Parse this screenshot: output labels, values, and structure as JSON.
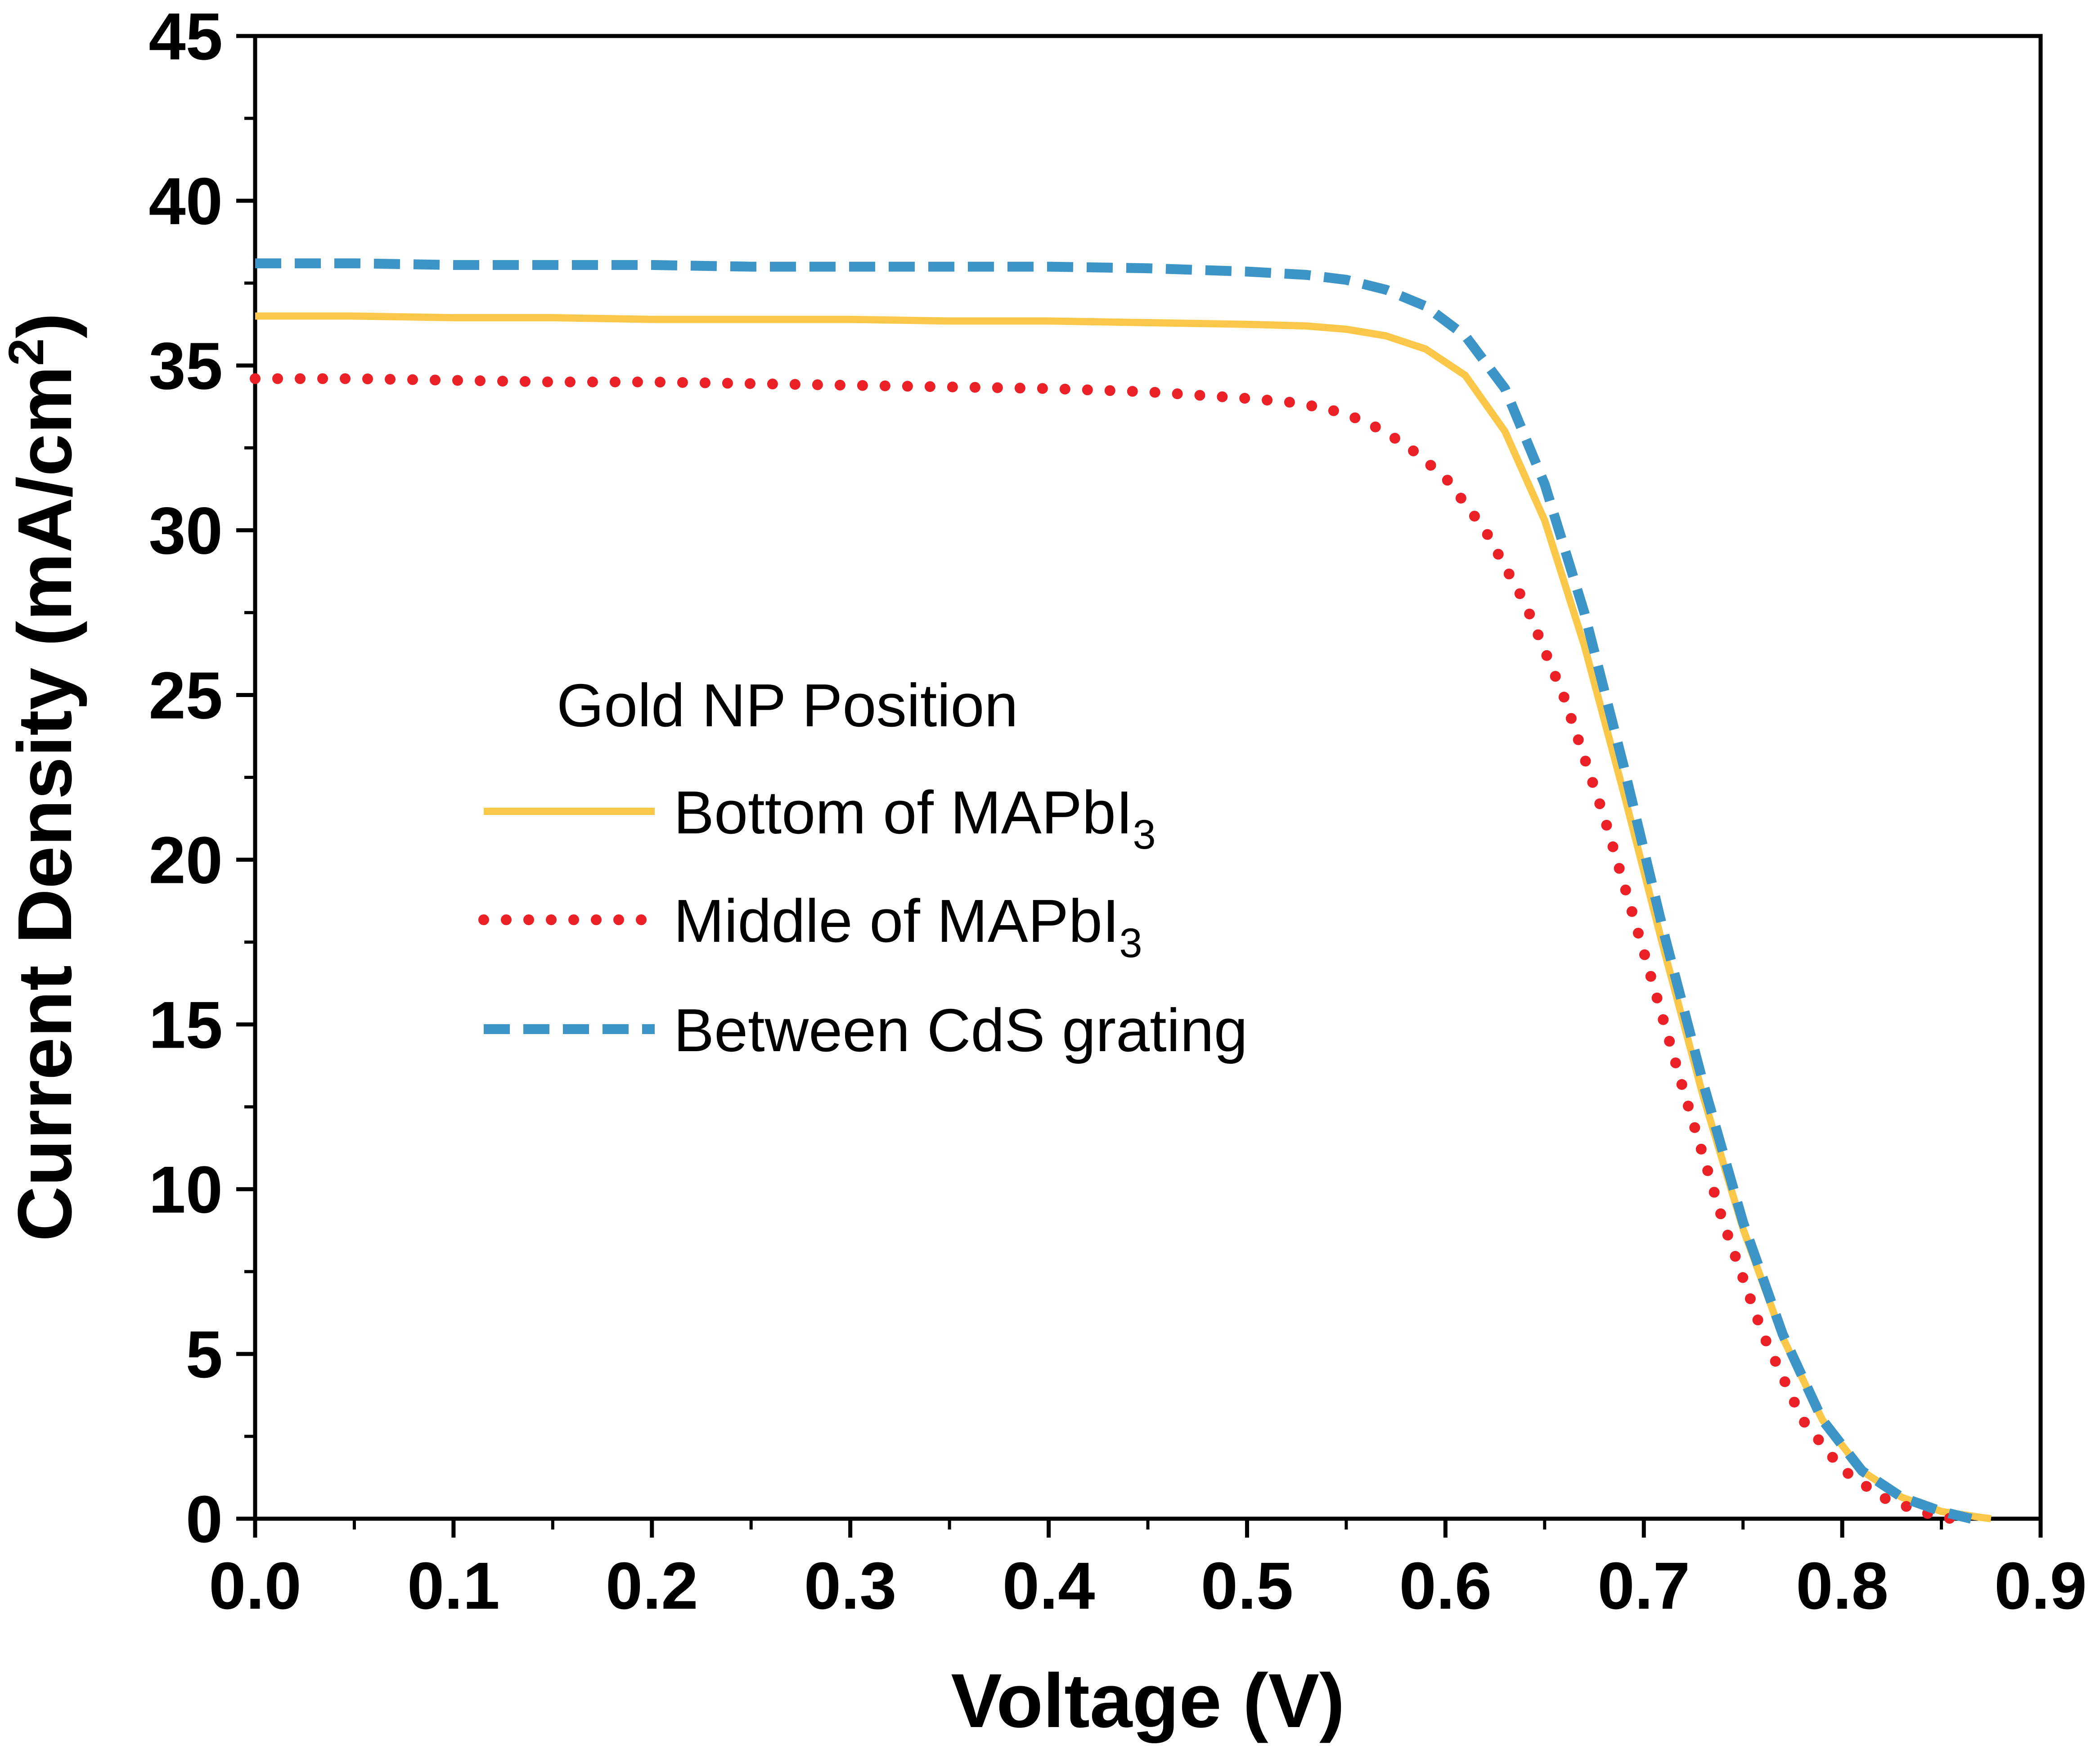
{
  "chart_data": {
    "type": "line",
    "title": "",
    "xlabel": "Voltage (V)",
    "ylabel": {
      "text": "Current Density (mA/cm",
      "superscript": "2",
      "close": ")"
    },
    "xlim": [
      0.0,
      0.9
    ],
    "ylim": [
      0,
      45
    ],
    "x_ticks": [
      "0.0",
      "0.1",
      "0.2",
      "0.3",
      "0.4",
      "0.5",
      "0.6",
      "0.7",
      "0.8",
      "0.9"
    ],
    "y_ticks": [
      "0",
      "5",
      "10",
      "15",
      "20",
      "25",
      "30",
      "35",
      "40",
      "45"
    ],
    "grid": false,
    "legend": {
      "title": "Gold NP Position",
      "placement": "center-left",
      "entries": [
        {
          "text": "Bottom of MAPbI",
          "subscript": "3"
        },
        {
          "text": "Middle of MAPbI",
          "subscript": "3"
        },
        {
          "text": "Between CdS grating",
          "subscript": ""
        }
      ]
    },
    "series": [
      {
        "name": "Bottom of MAPbI3",
        "color": "#fbc748",
        "style": "solid",
        "points": [
          [
            0.0,
            36.5
          ],
          [
            0.05,
            36.5
          ],
          [
            0.1,
            36.45
          ],
          [
            0.15,
            36.45
          ],
          [
            0.2,
            36.4
          ],
          [
            0.25,
            36.4
          ],
          [
            0.3,
            36.4
          ],
          [
            0.35,
            36.35
          ],
          [
            0.4,
            36.35
          ],
          [
            0.45,
            36.3
          ],
          [
            0.5,
            36.25
          ],
          [
            0.53,
            36.2
          ],
          [
            0.55,
            36.1
          ],
          [
            0.57,
            35.9
          ],
          [
            0.59,
            35.5
          ],
          [
            0.61,
            34.7
          ],
          [
            0.63,
            33.0
          ],
          [
            0.65,
            30.3
          ],
          [
            0.67,
            26.5
          ],
          [
            0.69,
            22.0
          ],
          [
            0.71,
            17.3
          ],
          [
            0.73,
            12.8
          ],
          [
            0.75,
            8.8
          ],
          [
            0.77,
            5.5
          ],
          [
            0.79,
            3.0
          ],
          [
            0.81,
            1.45
          ],
          [
            0.83,
            0.65
          ],
          [
            0.85,
            0.22
          ],
          [
            0.87,
            0.04
          ],
          [
            0.875,
            0.0
          ]
        ]
      },
      {
        "name": "Middle of MAPbI3",
        "color": "#ec2027",
        "style": "dotted",
        "points": [
          [
            0.0,
            34.6
          ],
          [
            0.05,
            34.6
          ],
          [
            0.1,
            34.55
          ],
          [
            0.15,
            34.5
          ],
          [
            0.2,
            34.5
          ],
          [
            0.25,
            34.45
          ],
          [
            0.3,
            34.4
          ],
          [
            0.35,
            34.35
          ],
          [
            0.4,
            34.3
          ],
          [
            0.45,
            34.2
          ],
          [
            0.5,
            34.0
          ],
          [
            0.52,
            33.9
          ],
          [
            0.54,
            33.7
          ],
          [
            0.56,
            33.3
          ],
          [
            0.58,
            32.6
          ],
          [
            0.6,
            31.6
          ],
          [
            0.62,
            30.0
          ],
          [
            0.64,
            27.8
          ],
          [
            0.66,
            24.9
          ],
          [
            0.68,
            21.3
          ],
          [
            0.7,
            17.2
          ],
          [
            0.72,
            13.0
          ],
          [
            0.74,
            9.0
          ],
          [
            0.76,
            5.6
          ],
          [
            0.78,
            3.0
          ],
          [
            0.8,
            1.5
          ],
          [
            0.82,
            0.65
          ],
          [
            0.84,
            0.2
          ],
          [
            0.855,
            0.0
          ]
        ]
      },
      {
        "name": "Between CdS grating",
        "color": "#3d94c7",
        "style": "dashed",
        "points": [
          [
            0.0,
            38.1
          ],
          [
            0.05,
            38.1
          ],
          [
            0.1,
            38.05
          ],
          [
            0.15,
            38.05
          ],
          [
            0.2,
            38.05
          ],
          [
            0.25,
            38.0
          ],
          [
            0.3,
            38.0
          ],
          [
            0.35,
            38.0
          ],
          [
            0.4,
            38.0
          ],
          [
            0.45,
            37.95
          ],
          [
            0.5,
            37.85
          ],
          [
            0.53,
            37.75
          ],
          [
            0.55,
            37.6
          ],
          [
            0.57,
            37.3
          ],
          [
            0.59,
            36.8
          ],
          [
            0.61,
            35.9
          ],
          [
            0.63,
            34.3
          ],
          [
            0.65,
            31.4
          ],
          [
            0.67,
            27.5
          ],
          [
            0.69,
            22.8
          ],
          [
            0.71,
            17.8
          ],
          [
            0.73,
            13.2
          ],
          [
            0.75,
            9.0
          ],
          [
            0.77,
            5.6
          ],
          [
            0.79,
            3.0
          ],
          [
            0.81,
            1.45
          ],
          [
            0.83,
            0.65
          ],
          [
            0.85,
            0.22
          ],
          [
            0.865,
            0.0
          ]
        ]
      }
    ]
  }
}
